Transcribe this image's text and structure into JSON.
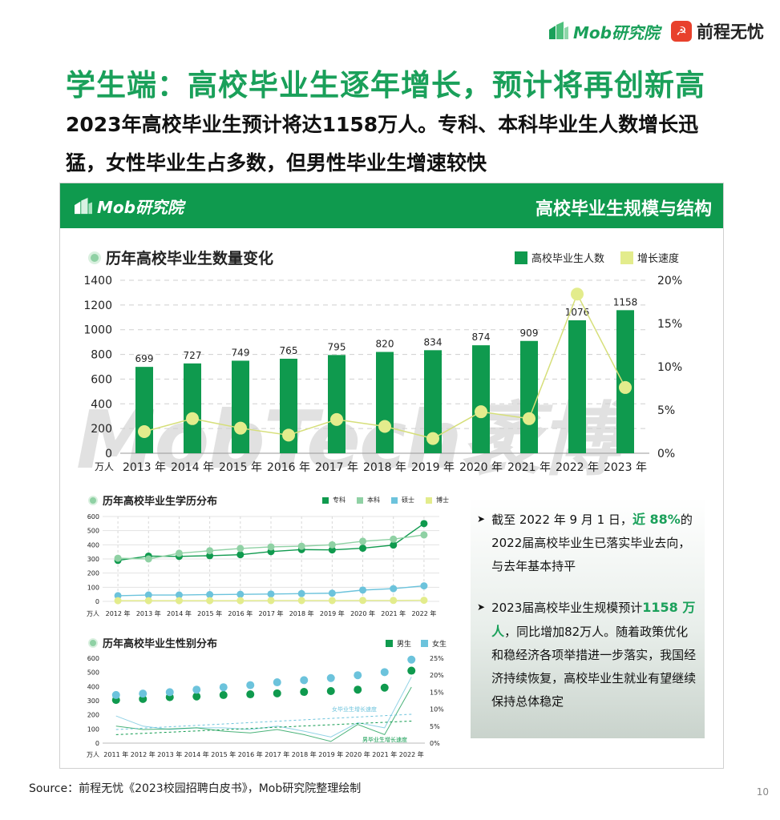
{
  "header": {
    "logo_mob": "Mob研究院",
    "logo_51": "前程无忧",
    "title": "学生端：高校毕业生逐年增长，预计将再创新高",
    "subtitle": "2023年高校毕业生预计将达1158万人。专科、本科毕业生人数增长迅猛，女性毕业生占多数，但男性毕业生增速较快"
  },
  "panel": {
    "logo": "Mob研究院",
    "title": "高校毕业生规模与结构",
    "watermark": "MobTech袤博"
  },
  "colors": {
    "green": "#0f9a4e",
    "light_green": "#8fd1a4",
    "yellow": "#e3ec8c",
    "blue": "#6cc3dc",
    "yellow_line": "#d6df7a"
  },
  "chart_data": [
    {
      "type": "bar",
      "title": "历年高校毕业生数量变化",
      "categories": [
        "2013 年",
        "2014 年",
        "2015 年",
        "2016 年",
        "2017 年",
        "2018 年",
        "2019 年",
        "2020 年",
        "2021 年",
        "2022 年",
        "2023 年"
      ],
      "unit_label": "万人",
      "y_ticks": [
        "1400",
        "1200",
        "1000",
        "800",
        "600",
        "400",
        "200",
        "0"
      ],
      "y2_ticks": [
        "20%",
        "15%",
        "10%",
        "5%",
        "0%"
      ],
      "ylim": [
        0,
        1400
      ],
      "y2lim": [
        0,
        20
      ],
      "series": [
        {
          "name": "高校毕业生人数",
          "values": [
            699,
            727,
            749,
            765,
            795,
            820,
            834,
            874,
            909,
            1076,
            1158
          ]
        },
        {
          "name": "增长速度",
          "values": [
            2.5,
            4.0,
            2.9,
            2.1,
            3.9,
            3.1,
            1.7,
            4.8,
            4.0,
            18.4,
            7.6
          ]
        }
      ]
    },
    {
      "type": "line",
      "title": "历年高校毕业生学历分布",
      "categories": [
        "2012 年",
        "2013 年",
        "2014 年",
        "2015 年",
        "2016 年",
        "2017 年",
        "2018 年",
        "2019 年",
        "2020 年",
        "2021 年",
        "2022 年"
      ],
      "unit_label": "万人",
      "y_ticks": [
        "600",
        "500",
        "400",
        "300",
        "200",
        "100",
        "0"
      ],
      "ylim": [
        0,
        600
      ],
      "series": [
        {
          "name": "专科",
          "values": [
            290,
            320,
            318,
            323,
            330,
            352,
            366,
            364,
            376,
            398,
            550
          ]
        },
        {
          "name": "本科",
          "values": [
            305,
            300,
            340,
            358,
            374,
            385,
            390,
            400,
            425,
            440,
            470
          ]
        },
        {
          "name": "硕士",
          "values": [
            40,
            45,
            45,
            48,
            50,
            52,
            55,
            58,
            80,
            90,
            110
          ]
        },
        {
          "name": "博士",
          "values": [
            5,
            5,
            5,
            5,
            5,
            6,
            6,
            6,
            7,
            7,
            8
          ]
        }
      ]
    },
    {
      "type": "scatter",
      "title": "历年高校毕业生性别分布",
      "categories": [
        "2011 年",
        "2012 年",
        "2013 年",
        "2014 年",
        "2015 年",
        "2016 年",
        "2017 年",
        "2018 年",
        "2019 年",
        "2020 年",
        "2021 年",
        "2022 年"
      ],
      "unit_label": "万人",
      "y_ticks": [
        "600",
        "500",
        "400",
        "300",
        "200",
        "100",
        "0"
      ],
      "y2_ticks": [
        "25%",
        "20%",
        "15%",
        "10%",
        "5%",
        "0%"
      ],
      "ylim": [
        0,
        600
      ],
      "y2lim": [
        0,
        25
      ],
      "series": [
        {
          "name": "男生",
          "values": [
            305,
            312,
            325,
            330,
            340,
            345,
            352,
            362,
            368,
            378,
            392,
            512
          ]
        },
        {
          "name": "女生",
          "values": [
            340,
            350,
            360,
            378,
            395,
            410,
            430,
            445,
            460,
            480,
            502,
            590
          ]
        },
        {
          "name": "女毕业生增长速度",
          "values": [
            8,
            5,
            4,
            4.5,
            4.5,
            4,
            5,
            3.5,
            1.8,
            6,
            4.5,
            19.5
          ]
        },
        {
          "name": "男毕业生增长速度",
          "values": [
            5,
            4,
            4.2,
            4.5,
            3.5,
            3,
            4,
            2.5,
            0.5,
            5.5,
            2.5,
            16.5
          ]
        }
      ],
      "annotations": [
        "女毕业生增长速度",
        "男毕业生增长速度"
      ]
    }
  ],
  "side": {
    "b1_pre": "截至 2022 年 9 月 1 日，",
    "b1_hl": "近 88%",
    "b1_post": "的2022届高校毕业生已落实毕业去向，与去年基本持平",
    "b2_pre": "2023届高校毕业生规模预计",
    "b2_hl": "1158 万人",
    "b2_post": "，同比增加82万人。随着政策优化和稳经济各项举措进一步落实，我国经济持续恢复，高校毕业生就业有望继续保持总体稳定"
  },
  "footer": {
    "source": "Source：前程无忧《2023校园招聘白皮书》，Mob研究院整理绘制",
    "page": "10"
  }
}
